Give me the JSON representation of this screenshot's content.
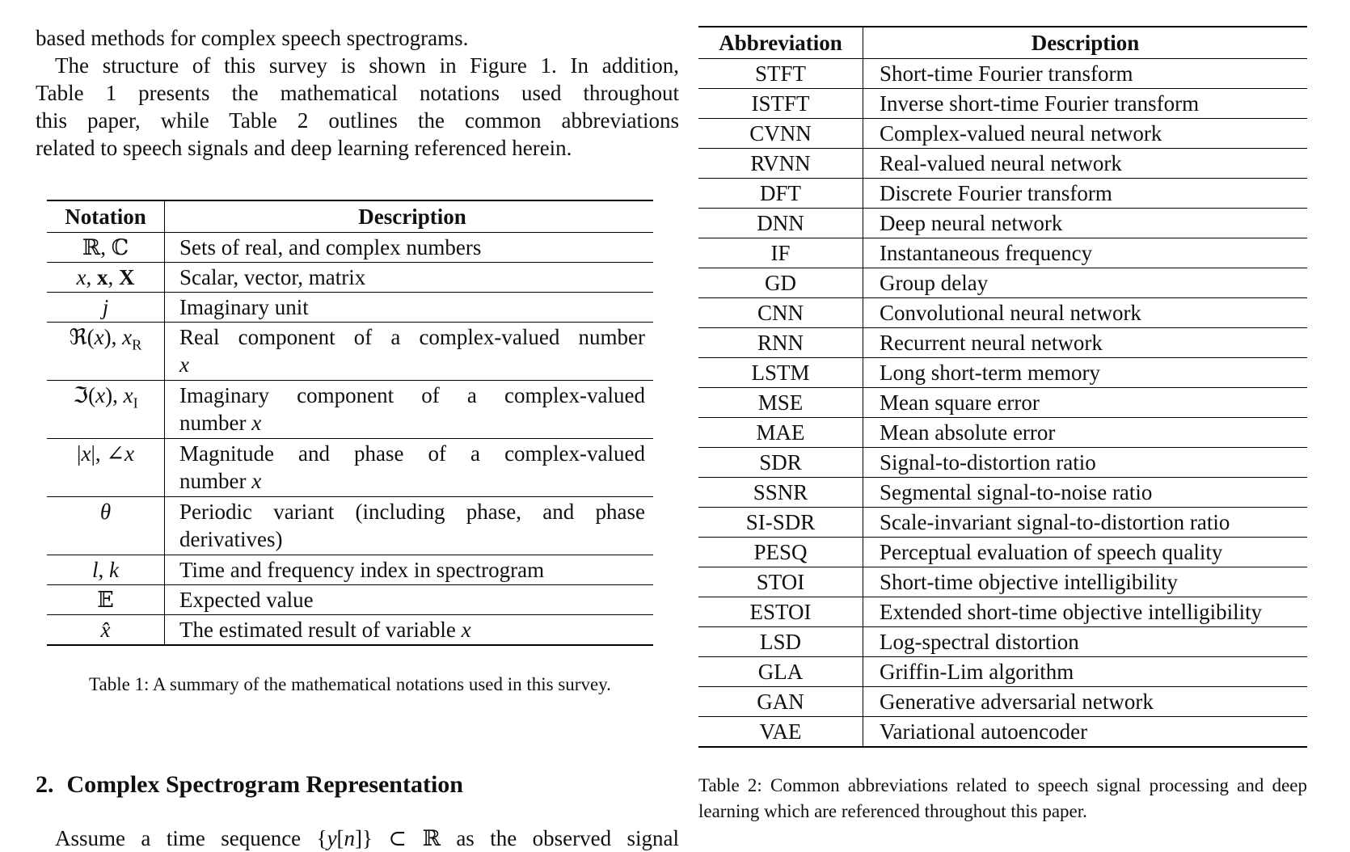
{
  "intro": {
    "tail_line": "based methods for complex speech spectrograms.",
    "para_lines": [
      "The structure of this survey is shown in Figure 1. In addition,",
      "Table 1 presents the mathematical notations used throughout",
      "this paper, while Table 2 outlines the common abbreviations",
      "related to speech signals and deep learning referenced herein."
    ]
  },
  "table1": {
    "headers": [
      "Notation",
      "Description"
    ],
    "rows": [
      {
        "notation": "ℝ, ℂ",
        "desc_lines": [
          "Sets of real, and complex numbers"
        ]
      },
      {
        "notation": "<i>x</i>, <b>x</b>, <b>X</b>",
        "desc_lines": [
          "Scalar, vector, matrix"
        ]
      },
      {
        "notation": "<i>j</i>",
        "desc_lines": [
          "Imaginary unit"
        ]
      },
      {
        "notation": "ℜ(<i>x</i>), <i>x</i><sub>R</sub>",
        "desc_lines": [
          "Real component of a complex-valued number",
          "<i>x</i>"
        ]
      },
      {
        "notation": "ℑ(<i>x</i>), <i>x</i><sub>I</sub>",
        "desc_lines": [
          "Imaginary component of a complex-valued",
          "number <i>x</i>"
        ]
      },
      {
        "notation": "|<i>x</i>|, ∠<i>x</i>",
        "desc_lines": [
          "Magnitude and phase of a complex-valued",
          "number <i>x</i>"
        ]
      },
      {
        "notation": "<i>θ</i>",
        "desc_lines": [
          "Periodic variant (including phase, and phase",
          "derivatives)"
        ]
      },
      {
        "notation": "<i>l</i>, <i>k</i>",
        "desc_lines": [
          "Time and frequency index in spectrogram"
        ]
      },
      {
        "notation": "𝔼",
        "desc_lines": [
          "Expected value"
        ]
      },
      {
        "notation": "<i>x̂</i>",
        "desc_lines": [
          "The estimated result of variable <i>x</i>"
        ]
      }
    ],
    "caption": "Table 1: A summary of the mathematical notations used in this survey."
  },
  "section": {
    "number": "2.",
    "title": "Complex Spectrogram Representation"
  },
  "partial_line": "Assume a time sequence {<i>y</i>[<i>n</i>]} ⊂ ℝ as the observed signal",
  "table2": {
    "headers": [
      "Abbreviation",
      "Description"
    ],
    "rows": [
      {
        "abbr": "STFT",
        "desc": "Short-time Fourier transform"
      },
      {
        "abbr": "ISTFT",
        "desc": "Inverse short-time Fourier transform"
      },
      {
        "abbr": "CVNN",
        "desc": "Complex-valued neural network"
      },
      {
        "abbr": "RVNN",
        "desc": "Real-valued neural network"
      },
      {
        "abbr": "DFT",
        "desc": "Discrete Fourier transform"
      },
      {
        "abbr": "DNN",
        "desc": "Deep neural network"
      },
      {
        "abbr": "IF",
        "desc": "Instantaneous frequency"
      },
      {
        "abbr": "GD",
        "desc": "Group delay"
      },
      {
        "abbr": "CNN",
        "desc": "Convolutional neural network"
      },
      {
        "abbr": "RNN",
        "desc": "Recurrent neural network"
      },
      {
        "abbr": "LSTM",
        "desc": "Long short-term memory"
      },
      {
        "abbr": "MSE",
        "desc": "Mean square error"
      },
      {
        "abbr": "MAE",
        "desc": "Mean absolute error"
      },
      {
        "abbr": "SDR",
        "desc": "Signal-to-distortion ratio"
      },
      {
        "abbr": "SSNR",
        "desc": "Segmental signal-to-noise ratio"
      },
      {
        "abbr": "SI-SDR",
        "desc": "Scale-invariant signal-to-distortion ratio"
      },
      {
        "abbr": "PESQ",
        "desc": "Perceptual evaluation of speech quality"
      },
      {
        "abbr": "STOI",
        "desc": "Short-time objective intelligibility"
      },
      {
        "abbr": "ESTOI",
        "desc": "Extended short-time objective intelligibility"
      },
      {
        "abbr": "LSD",
        "desc": "Log-spectral distortion"
      },
      {
        "abbr": "GLA",
        "desc": "Griffin-Lim algorithm"
      },
      {
        "abbr": "GAN",
        "desc": "Generative adversarial network"
      },
      {
        "abbr": "VAE",
        "desc": "Variational autoencoder"
      }
    ],
    "caption": "Table 2: Common abbreviations related to speech signal processing and deep learning which are referenced throughout this paper."
  }
}
